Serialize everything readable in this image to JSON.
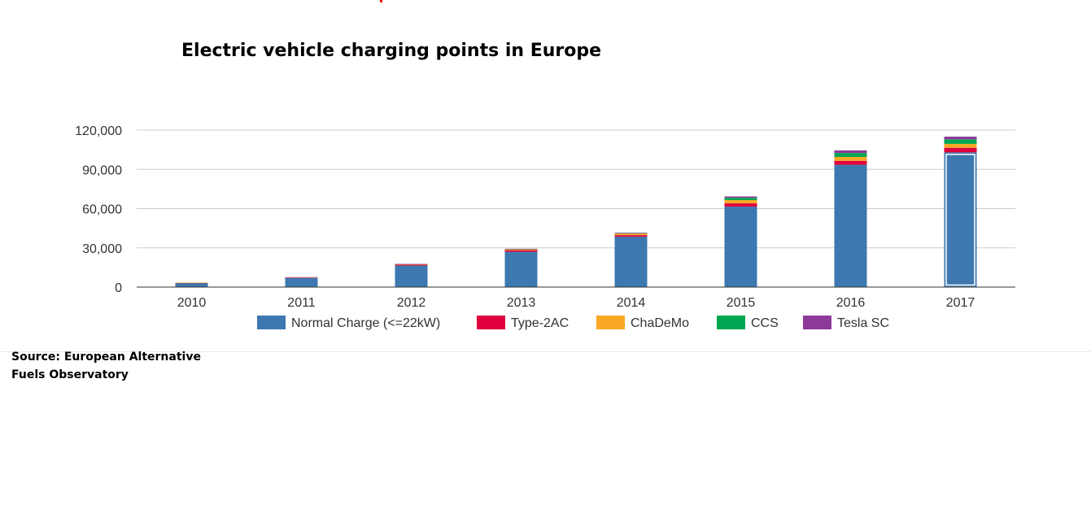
{
  "chart_data": {
    "type": "bar",
    "stacked": true,
    "title": "Electric vehicle charging points in Europe",
    "xlabel": "",
    "ylabel": "",
    "categories": [
      "2010",
      "2011",
      "2012",
      "2013",
      "2014",
      "2015",
      "2016",
      "2017"
    ],
    "ylim": [
      0,
      120000
    ],
    "yticks": [
      0,
      30000,
      60000,
      90000,
      120000
    ],
    "ytick_labels": [
      "0",
      "30,000",
      "60,000",
      "90,000",
      "120,000"
    ],
    "grid": true,
    "legend_position": "bottom",
    "highlighted_category": "2017",
    "series": [
      {
        "name": "Normal Charge (<=22kW)",
        "color": "#3d78b0",
        "values": [
          3200,
          7000,
          16500,
          27000,
          38500,
          61500,
          93500,
          103000
        ]
      },
      {
        "name": "Type-2AC",
        "color": "#e0003d",
        "values": [
          100,
          300,
          600,
          1200,
          1200,
          2500,
          3000,
          3500
        ]
      },
      {
        "name": "ChaDeMo",
        "color": "#f9a825",
        "values": [
          100,
          200,
          400,
          800,
          1200,
          2500,
          3000,
          3000
        ]
      },
      {
        "name": "CCS",
        "color": "#00a651",
        "values": [
          0,
          0,
          0,
          100,
          300,
          1800,
          3000,
          3500
        ]
      },
      {
        "name": "Tesla SC",
        "color": "#8e3a9a",
        "values": [
          0,
          100,
          200,
          200,
          400,
          1000,
          2000,
          2000
        ]
      }
    ]
  },
  "source": {
    "line1": "Source: European Alternative",
    "line2": "Fuels Observatory"
  }
}
